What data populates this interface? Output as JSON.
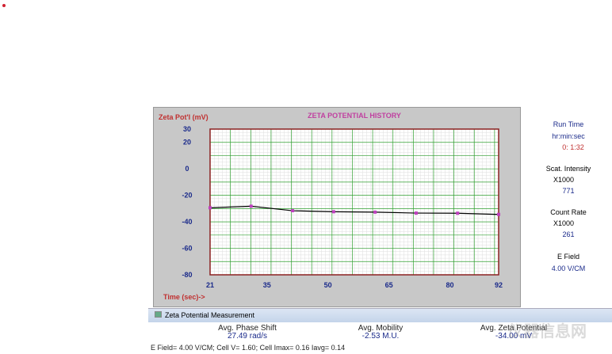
{
  "chart_data": {
    "type": "line",
    "title": "ZETA POTENTIAL HISTORY",
    "ylabel": "Zeta Pot'l (mV)",
    "xlabel": "Time (sec)->",
    "xlim": [
      21,
      92
    ],
    "ylim": [
      -80,
      30
    ],
    "x_ticks": [
      "21",
      "35",
      "50",
      "65",
      "80",
      "92"
    ],
    "y_ticks": [
      "30",
      "20",
      "0",
      "-20",
      "-40",
      "-60",
      "-80"
    ],
    "grid": true,
    "x": [
      21,
      31.1,
      41.3,
      51.4,
      61.6,
      71.7,
      81.9,
      92
    ],
    "y": [
      -29.4,
      -28.2,
      -31.6,
      -32.4,
      -32.7,
      -33.4,
      -33.5,
      -34.4
    ],
    "colors": {
      "line": "#000000",
      "marker": "#c040c0",
      "grid_major": "#30a030",
      "frame": "#8b2020"
    }
  },
  "side": {
    "run_time_label": "Run Time",
    "run_time_unit": "hr:min:sec",
    "run_time_value": "0: 1:32",
    "scat_label": "Scat. Intensity",
    "scat_unit": "X1000",
    "scat_value": "771",
    "count_label": "Count Rate",
    "count_unit": "X1000",
    "count_value": "261",
    "efield_label": "E Field",
    "efield_value": "4.00 V/CM"
  },
  "measurement": {
    "title": "Zeta Potential Measurement",
    "phase_label": "Avg. Phase Shift",
    "phase_value": "27.49 rad/s",
    "mobility_label": "Avg. Mobility",
    "mobility_value": "-2.53 M.U.",
    "zeta_label": "Avg. Zeta Potential",
    "zeta_value": "-34.00 mV",
    "footer": "E Field= 4.00 V/CM; Cell V= 1.60; Cell Imax= 0.16 Iavg= 0.14"
  },
  "watermark": "仪器信息网"
}
